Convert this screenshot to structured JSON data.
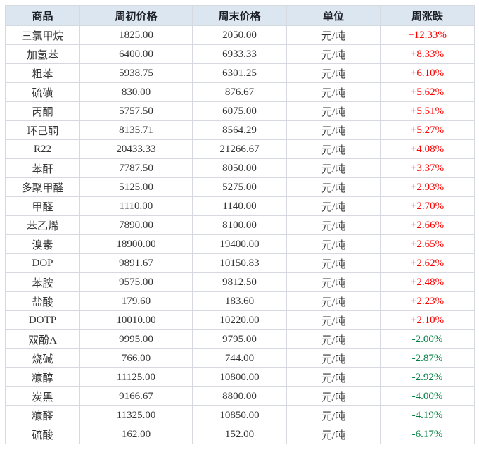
{
  "colors": {
    "header_bg": "#dce6f1",
    "header_text": "#1c1f26",
    "body_text": "#333333",
    "border": "#d6dae0",
    "up": "#ff0000",
    "down": "#008040",
    "page_bg": "#ffffff"
  },
  "chart_data": {
    "type": "table",
    "columns": [
      "商品",
      "周初价格",
      "周末价格",
      "单位",
      "周涨跌"
    ],
    "rows": [
      {
        "commodity": "三氯甲烷",
        "start_price": "1825.00",
        "end_price": "2050.00",
        "unit": "元/吨",
        "change": "+12.33%",
        "direction": "up"
      },
      {
        "commodity": "加氢苯",
        "start_price": "6400.00",
        "end_price": "6933.33",
        "unit": "元/吨",
        "change": "+8.33%",
        "direction": "up"
      },
      {
        "commodity": "粗苯",
        "start_price": "5938.75",
        "end_price": "6301.25",
        "unit": "元/吨",
        "change": "+6.10%",
        "direction": "up"
      },
      {
        "commodity": "硫磺",
        "start_price": "830.00",
        "end_price": "876.67",
        "unit": "元/吨",
        "change": "+5.62%",
        "direction": "up"
      },
      {
        "commodity": "丙酮",
        "start_price": "5757.50",
        "end_price": "6075.00",
        "unit": "元/吨",
        "change": "+5.51%",
        "direction": "up"
      },
      {
        "commodity": "环己酮",
        "start_price": "8135.71",
        "end_price": "8564.29",
        "unit": "元/吨",
        "change": "+5.27%",
        "direction": "up"
      },
      {
        "commodity": "R22",
        "start_price": "20433.33",
        "end_price": "21266.67",
        "unit": "元/吨",
        "change": "+4.08%",
        "direction": "up"
      },
      {
        "commodity": "苯酐",
        "start_price": "7787.50",
        "end_price": "8050.00",
        "unit": "元/吨",
        "change": "+3.37%",
        "direction": "up"
      },
      {
        "commodity": "多聚甲醛",
        "start_price": "5125.00",
        "end_price": "5275.00",
        "unit": "元/吨",
        "change": "+2.93%",
        "direction": "up"
      },
      {
        "commodity": "甲醛",
        "start_price": "1110.00",
        "end_price": "1140.00",
        "unit": "元/吨",
        "change": "+2.70%",
        "direction": "up"
      },
      {
        "commodity": "苯乙烯",
        "start_price": "7890.00",
        "end_price": "8100.00",
        "unit": "元/吨",
        "change": "+2.66%",
        "direction": "up"
      },
      {
        "commodity": "溴素",
        "start_price": "18900.00",
        "end_price": "19400.00",
        "unit": "元/吨",
        "change": "+2.65%",
        "direction": "up"
      },
      {
        "commodity": "DOP",
        "start_price": "9891.67",
        "end_price": "10150.83",
        "unit": "元/吨",
        "change": "+2.62%",
        "direction": "up"
      },
      {
        "commodity": "苯胺",
        "start_price": "9575.00",
        "end_price": "9812.50",
        "unit": "元/吨",
        "change": "+2.48%",
        "direction": "up"
      },
      {
        "commodity": "盐酸",
        "start_price": "179.60",
        "end_price": "183.60",
        "unit": "元/吨",
        "change": "+2.23%",
        "direction": "up"
      },
      {
        "commodity": "DOTP",
        "start_price": "10010.00",
        "end_price": "10220.00",
        "unit": "元/吨",
        "change": "+2.10%",
        "direction": "up"
      },
      {
        "commodity": "双酚A",
        "start_price": "9995.00",
        "end_price": "9795.00",
        "unit": "元/吨",
        "change": "-2.00%",
        "direction": "down"
      },
      {
        "commodity": "烧碱",
        "start_price": "766.00",
        "end_price": "744.00",
        "unit": "元/吨",
        "change": "-2.87%",
        "direction": "down"
      },
      {
        "commodity": "糠醇",
        "start_price": "11125.00",
        "end_price": "10800.00",
        "unit": "元/吨",
        "change": "-2.92%",
        "direction": "down"
      },
      {
        "commodity": "炭黑",
        "start_price": "9166.67",
        "end_price": "8800.00",
        "unit": "元/吨",
        "change": "-4.00%",
        "direction": "down"
      },
      {
        "commodity": "糠醛",
        "start_price": "11325.00",
        "end_price": "10850.00",
        "unit": "元/吨",
        "change": "-4.19%",
        "direction": "down"
      },
      {
        "commodity": "硫酸",
        "start_price": "162.00",
        "end_price": "152.00",
        "unit": "元/吨",
        "change": "-6.17%",
        "direction": "down"
      }
    ]
  }
}
